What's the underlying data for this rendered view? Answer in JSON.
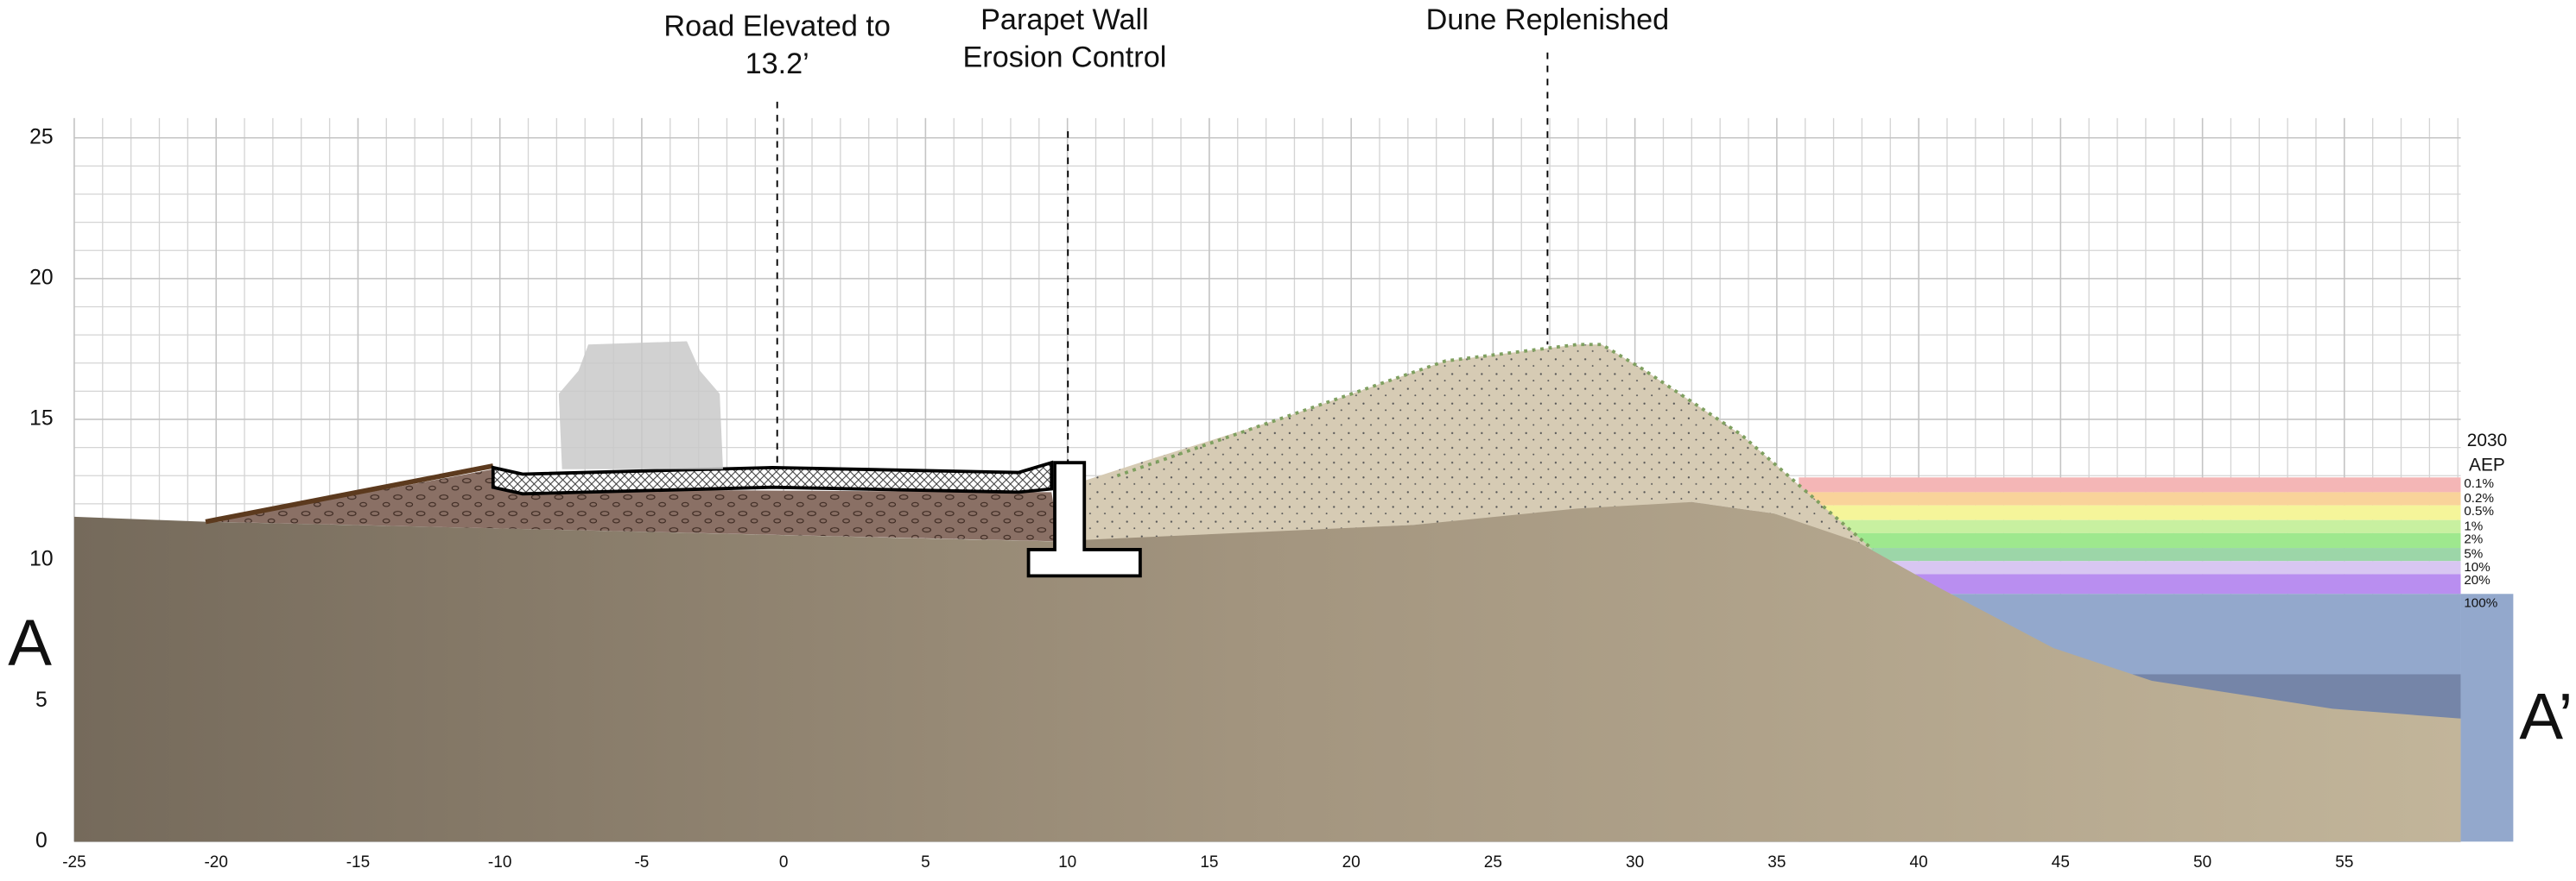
{
  "chart_data": {
    "type": "cross-section",
    "xlim": [
      -25,
      59.1
    ],
    "ylim": [
      0,
      25.7
    ],
    "xticks": [
      -25,
      -20,
      -15,
      -10,
      -5,
      0,
      5,
      10,
      15,
      20,
      25,
      30,
      35,
      40,
      45,
      50,
      55
    ],
    "yticks": [
      0,
      5,
      10,
      15,
      20,
      25
    ],
    "section_start": "A",
    "section_end": "A’",
    "annotations": [
      {
        "lines": [
          "Road Elevated to",
          "13.2’"
        ]
      },
      {
        "lines": [
          "Parapet Wall",
          "Erosion Control"
        ]
      },
      {
        "lines": [
          "Dune Replenished"
        ]
      }
    ],
    "aep": {
      "year": "2030",
      "title": "AEP",
      "labels": [
        "0.1%",
        "0.2%",
        "0.5%",
        "1%",
        "2%",
        "5%",
        "10%",
        "20%",
        "100%"
      ],
      "colors": [
        "#f4b6b6",
        "#f9d39a",
        "#f5f59a",
        "#c8f0a0",
        "#9ee88e",
        "#9cd6a8",
        "#d8c6f2",
        "#b98ef0",
        "#93a8cc"
      ]
    }
  }
}
